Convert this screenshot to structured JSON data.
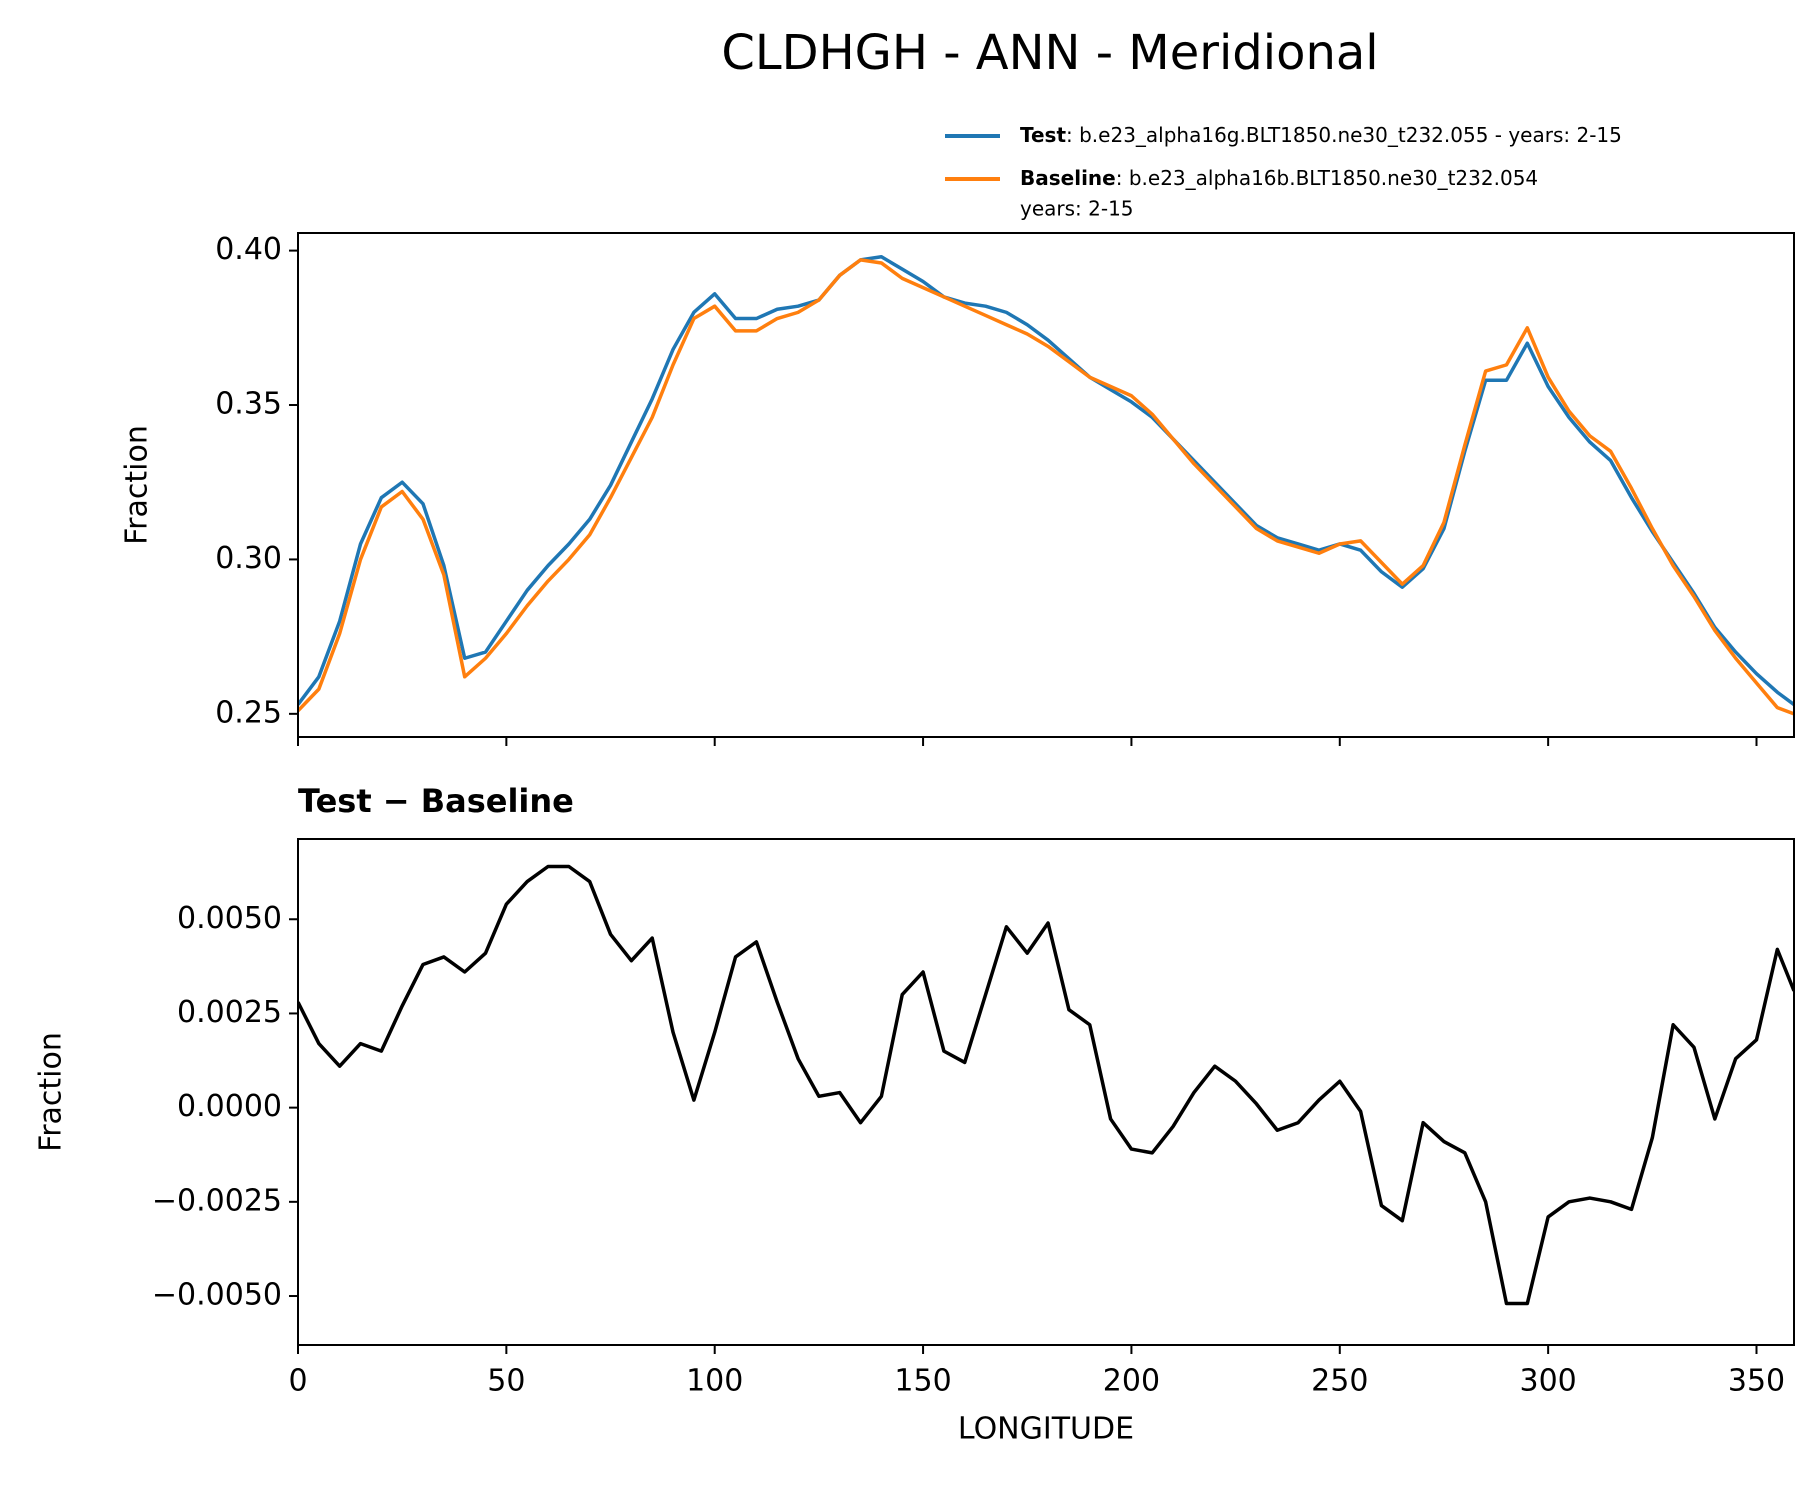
{
  "chart_data": [
    {
      "type": "line",
      "title": "CLDHGH - ANN - Meridional",
      "ylabel": "Fraction",
      "x": [
        0,
        5,
        10,
        15,
        20,
        25,
        30,
        35,
        40,
        45,
        50,
        55,
        60,
        65,
        70,
        75,
        80,
        85,
        90,
        95,
        100,
        105,
        110,
        115,
        120,
        125,
        130,
        135,
        140,
        145,
        150,
        155,
        160,
        165,
        170,
        175,
        180,
        185,
        190,
        195,
        200,
        205,
        210,
        215,
        220,
        225,
        230,
        235,
        240,
        245,
        250,
        255,
        260,
        265,
        270,
        275,
        280,
        285,
        290,
        295,
        300,
        305,
        310,
        315,
        320,
        325,
        330,
        335,
        340,
        345,
        350,
        355,
        359
      ],
      "series": [
        {
          "name": "Test",
          "legend_text": ": b.e23_alpha16g.BLT1850.ne30_t232.055 - years: 2-15",
          "color": "#1f77b4",
          "values": [
            0.253,
            0.262,
            0.28,
            0.305,
            0.32,
            0.325,
            0.318,
            0.298,
            0.268,
            0.27,
            0.28,
            0.29,
            0.298,
            0.305,
            0.313,
            0.324,
            0.338,
            0.352,
            0.368,
            0.38,
            0.386,
            0.378,
            0.378,
            0.381,
            0.382,
            0.384,
            0.392,
            0.397,
            0.398,
            0.394,
            0.39,
            0.385,
            0.383,
            0.382,
            0.38,
            0.376,
            0.371,
            0.365,
            0.359,
            0.355,
            0.351,
            0.346,
            0.339,
            0.332,
            0.325,
            0.318,
            0.311,
            0.307,
            0.305,
            0.303,
            0.305,
            0.303,
            0.296,
            0.291,
            0.297,
            0.31,
            0.335,
            0.358,
            0.358,
            0.37,
            0.356,
            0.346,
            0.338,
            0.332,
            0.32,
            0.309,
            0.299,
            0.289,
            0.278,
            0.27,
            0.263,
            0.257,
            0.253
          ]
        },
        {
          "name": "Baseline",
          "legend_text": ": b.e23_alpha16b.BLT1850.ne30_t232.054",
          "legend_text2": "years: 2-15",
          "color": "#ff7f0e",
          "values": [
            0.251,
            0.258,
            0.276,
            0.3,
            0.317,
            0.322,
            0.313,
            0.295,
            0.262,
            0.268,
            0.276,
            0.285,
            0.293,
            0.3,
            0.308,
            0.32,
            0.333,
            0.346,
            0.363,
            0.378,
            0.382,
            0.374,
            0.374,
            0.378,
            0.38,
            0.384,
            0.392,
            0.397,
            0.396,
            0.391,
            0.388,
            0.385,
            0.382,
            0.379,
            0.376,
            0.373,
            0.369,
            0.364,
            0.359,
            0.356,
            0.353,
            0.347,
            0.339,
            0.331,
            0.324,
            0.317,
            0.31,
            0.306,
            0.304,
            0.302,
            0.305,
            0.306,
            0.299,
            0.292,
            0.298,
            0.312,
            0.337,
            0.361,
            0.363,
            0.375,
            0.359,
            0.348,
            0.34,
            0.335,
            0.323,
            0.31,
            0.298,
            0.288,
            0.277,
            0.268,
            0.26,
            0.252,
            0.25
          ]
        }
      ],
      "xlim": [
        0,
        359
      ],
      "xticks": [
        0,
        50,
        100,
        150,
        200,
        250,
        300,
        350
      ],
      "show_xtick_labels": false,
      "ylim": [
        0.2425,
        0.4057
      ],
      "yticks": [
        {
          "value": 0.25,
          "label": "0.25"
        },
        {
          "value": 0.3,
          "label": "0.30"
        },
        {
          "value": 0.35,
          "label": "0.35"
        },
        {
          "value": 0.4,
          "label": "0.40"
        }
      ],
      "legend": "upper right"
    },
    {
      "type": "line",
      "title": "Test − Baseline",
      "xlabel": "LONGITUDE",
      "ylabel": "Fraction",
      "color": "#000000",
      "x": [
        0,
        5,
        10,
        15,
        20,
        25,
        30,
        35,
        40,
        45,
        50,
        55,
        60,
        65,
        70,
        75,
        80,
        85,
        90,
        95,
        100,
        105,
        110,
        115,
        120,
        125,
        130,
        135,
        140,
        145,
        150,
        155,
        160,
        165,
        170,
        175,
        180,
        185,
        190,
        195,
        200,
        205,
        210,
        215,
        220,
        225,
        230,
        235,
        240,
        245,
        250,
        255,
        260,
        265,
        270,
        275,
        280,
        285,
        290,
        295,
        300,
        305,
        310,
        315,
        320,
        325,
        330,
        335,
        340,
        345,
        350,
        355,
        359
      ],
      "values": [
        0.0028,
        0.0017,
        0.0011,
        0.0017,
        0.0015,
        0.0027,
        0.0038,
        0.004,
        0.0036,
        0.0041,
        0.0054,
        0.006,
        0.0064,
        0.0064,
        0.006,
        0.0046,
        0.0039,
        0.0045,
        0.002,
        0.0002,
        0.002,
        0.004,
        0.0044,
        0.0028,
        0.0013,
        0.0003,
        0.0004,
        -0.0004,
        0.0003,
        0.003,
        0.0036,
        0.0015,
        0.0012,
        0.003,
        0.0048,
        0.0041,
        0.0049,
        0.0026,
        0.0022,
        -0.0003,
        -0.0011,
        -0.0012,
        -0.0005,
        0.0004,
        0.0011,
        0.0007,
        0.0001,
        -0.0006,
        -0.0004,
        0.0002,
        0.0007,
        -0.0001,
        -0.0026,
        -0.003,
        -0.0004,
        -0.0009,
        -0.0012,
        -0.0025,
        -0.0052,
        -0.0052,
        -0.0029,
        -0.0025,
        -0.0024,
        -0.0025,
        -0.0027,
        -0.0008,
        0.0022,
        0.0016,
        -0.0003,
        0.0013,
        0.0018,
        0.0042,
        0.0031
      ],
      "xlim": [
        0,
        359
      ],
      "xticks": [
        0,
        50,
        100,
        150,
        200,
        250,
        300,
        350
      ],
      "show_xtick_labels": true,
      "ylim": [
        -0.0063,
        0.00713
      ],
      "yticks": [
        {
          "value": -0.005,
          "label": "−0.0050"
        },
        {
          "value": -0.0025,
          "label": "−0.0025"
        },
        {
          "value": 0,
          "label": "0.0000"
        },
        {
          "value": 0.0025,
          "label": "0.0025"
        },
        {
          "value": 0.005,
          "label": "0.0050"
        }
      ]
    }
  ]
}
